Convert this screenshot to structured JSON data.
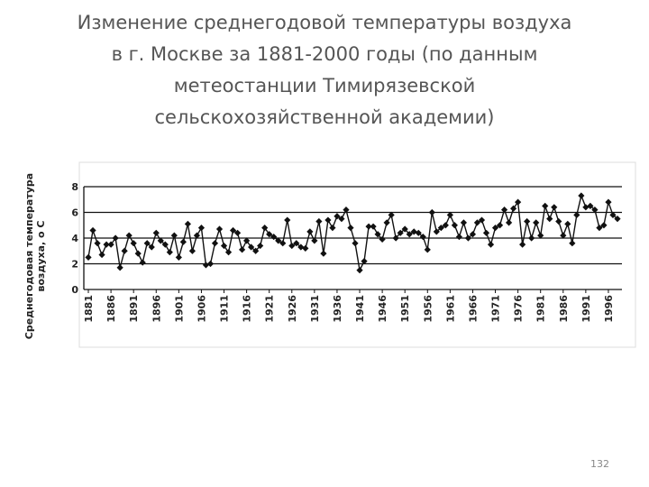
{
  "chart_data": {
    "type": "line",
    "title": [
      "Изменение среднегодовой температуры воздуха",
      "в г. Москве за 1881-2000 годы (по данным",
      "метеостанции Тимирязевской",
      "сельскохозяйственной академии)"
    ],
    "ylabel": [
      "Среднегодовая температура",
      "воздуха, о С"
    ],
    "x": [
      1881,
      1882,
      1883,
      1884,
      1885,
      1886,
      1887,
      1888,
      1889,
      1890,
      1891,
      1892,
      1893,
      1894,
      1895,
      1896,
      1897,
      1898,
      1899,
      1900,
      1901,
      1902,
      1903,
      1904,
      1905,
      1906,
      1907,
      1908,
      1909,
      1910,
      1911,
      1912,
      1913,
      1914,
      1915,
      1916,
      1917,
      1918,
      1919,
      1920,
      1921,
      1922,
      1923,
      1924,
      1925,
      1926,
      1927,
      1928,
      1929,
      1930,
      1931,
      1932,
      1933,
      1934,
      1935,
      1936,
      1937,
      1938,
      1939,
      1940,
      1941,
      1942,
      1943,
      1944,
      1945,
      1946,
      1947,
      1948,
      1949,
      1950,
      1951,
      1952,
      1953,
      1954,
      1955,
      1956,
      1957,
      1958,
      1959,
      1960,
      1961,
      1962,
      1963,
      1964,
      1965,
      1966,
      1967,
      1968,
      1969,
      1970,
      1971,
      1972,
      1973,
      1974,
      1975,
      1976,
      1977,
      1978,
      1979,
      1980,
      1981,
      1982,
      1983,
      1984,
      1985,
      1986,
      1987,
      1988,
      1989,
      1990,
      1991,
      1992,
      1993,
      1994,
      1995,
      1996,
      1997,
      1998
    ],
    "values": [
      2.5,
      4.6,
      3.6,
      2.7,
      3.5,
      3.5,
      4.0,
      1.7,
      3.0,
      4.2,
      3.6,
      2.8,
      2.1,
      3.6,
      3.3,
      4.4,
      3.8,
      3.5,
      2.9,
      4.2,
      2.5,
      3.7,
      5.1,
      3.0,
      4.2,
      4.8,
      1.9,
      2.0,
      3.6,
      4.7,
      3.4,
      2.9,
      4.6,
      4.4,
      3.1,
      3.8,
      3.3,
      3.0,
      3.4,
      4.8,
      4.3,
      4.1,
      3.8,
      3.6,
      5.4,
      3.4,
      3.6,
      3.3,
      3.2,
      4.5,
      3.8,
      5.3,
      2.8,
      5.4,
      4.8,
      5.7,
      5.5,
      6.2,
      4.8,
      3.6,
      1.5,
      2.2,
      4.9,
      4.9,
      4.3,
      3.9,
      5.2,
      5.8,
      4.0,
      4.4,
      4.7,
      4.3,
      4.5,
      4.4,
      4.1,
      3.1,
      6.0,
      4.5,
      4.8,
      5.0,
      5.8,
      5.0,
      4.1,
      5.2,
      4.0,
      4.3,
      5.2,
      5.4,
      4.4,
      3.5,
      4.8,
      5.0,
      6.2,
      5.2,
      6.3,
      6.8,
      3.5,
      5.3,
      4.0,
      5.2,
      4.2,
      6.5,
      5.5,
      6.4,
      5.3,
      4.2,
      5.1,
      3.6,
      5.8,
      7.3,
      6.4,
      6.5,
      6.2,
      4.8,
      5.0,
      6.8,
      5.8,
      5.5
    ],
    "color": "#111111",
    "xlim": [
      1880,
      1999
    ],
    "xticks": [
      1881,
      1886,
      1891,
      1896,
      1901,
      1906,
      1911,
      1916,
      1921,
      1926,
      1931,
      1936,
      1941,
      1946,
      1951,
      1956,
      1961,
      1966,
      1971,
      1976,
      1981,
      1986,
      1991,
      1996
    ],
    "ylim": [
      0,
      8
    ],
    "yticks": [
      0,
      2,
      4,
      6,
      8
    ],
    "grid": true
  },
  "page_number": "132"
}
